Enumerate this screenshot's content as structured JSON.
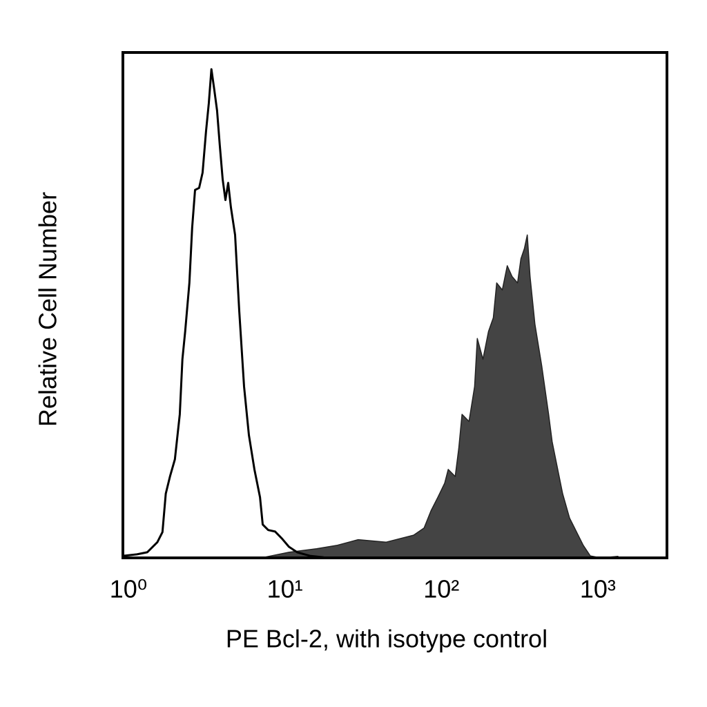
{
  "chart_data": {
    "type": "histogram-overlay",
    "xlabel": "PE Bcl-2, with isotype control",
    "ylabel": "Relative Cell Number",
    "xscale": "log",
    "xlim": [
      1,
      3000
    ],
    "ylim": [
      0,
      100
    ],
    "xticks": [
      {
        "value": 1,
        "label": "10⁰"
      },
      {
        "value": 10,
        "label": "10¹"
      },
      {
        "value": 100,
        "label": "10²"
      },
      {
        "value": 1000,
        "label": "10³"
      }
    ],
    "series": [
      {
        "color": "#444444",
        "filled": true,
        "x": [
          7.67,
          11.5,
          17.3,
          23.5,
          31.9,
          48.0,
          72.1,
          84.1,
          93.1,
          103,
          114,
          120,
          133,
          140,
          147,
          163,
          177,
          184,
          200,
          217,
          233,
          245,
          266,
          286,
          307,
          333,
          350,
          368,
          384,
          400,
          430,
          475,
          526,
          554,
          601,
          646,
          715,
          791,
          875,
          970,
          1130,
          1458
        ],
        "values": [
          0,
          1.1,
          1.8,
          2.5,
          3.6,
          3.1,
          4.5,
          5.9,
          9.3,
          12.0,
          14.8,
          17.5,
          16.1,
          21.6,
          28.4,
          27.0,
          33.9,
          43.4,
          39.3,
          44.8,
          47.5,
          54.4,
          53.0,
          57.8,
          55.7,
          54.4,
          59.2,
          61.2,
          63.9,
          55.7,
          46.2,
          38.0,
          28.4,
          23.0,
          17.5,
          12.7,
          7.9,
          5.2,
          2.5,
          0.4,
          0,
          0.3
        ]
      },
      {
        "color": "#000000",
        "filled": false,
        "x": [
          1.0,
          1.23,
          1.43,
          1.66,
          1.79,
          1.88,
          2.0,
          2.15,
          2.31,
          2.4,
          2.5,
          2.66,
          2.77,
          2.89,
          3.07,
          3.23,
          3.4,
          3.54,
          3.68,
          3.84,
          4.0,
          4.16,
          4.34,
          4.52,
          4.71,
          4.9,
          5.21,
          5.54,
          5.95,
          6.39,
          6.93,
          7.52,
          7.83,
          8.49,
          9.4,
          10.4,
          11.5,
          13.0,
          15.7,
          19.2
        ],
        "values": [
          0.4,
          0.7,
          1.1,
          3.1,
          5.1,
          12.7,
          16.1,
          19.5,
          28.4,
          39.3,
          44.8,
          54.4,
          65.3,
          72.8,
          73.2,
          76.2,
          84.4,
          89.9,
          96.7,
          92.6,
          88.5,
          81.7,
          74.9,
          70.8,
          74.2,
          69.4,
          63.9,
          48.9,
          33.9,
          24.3,
          17.5,
          12.0,
          6.6,
          5.5,
          5.2,
          3.8,
          2.2,
          1.1,
          0.4,
          0.1
        ]
      }
    ]
  }
}
